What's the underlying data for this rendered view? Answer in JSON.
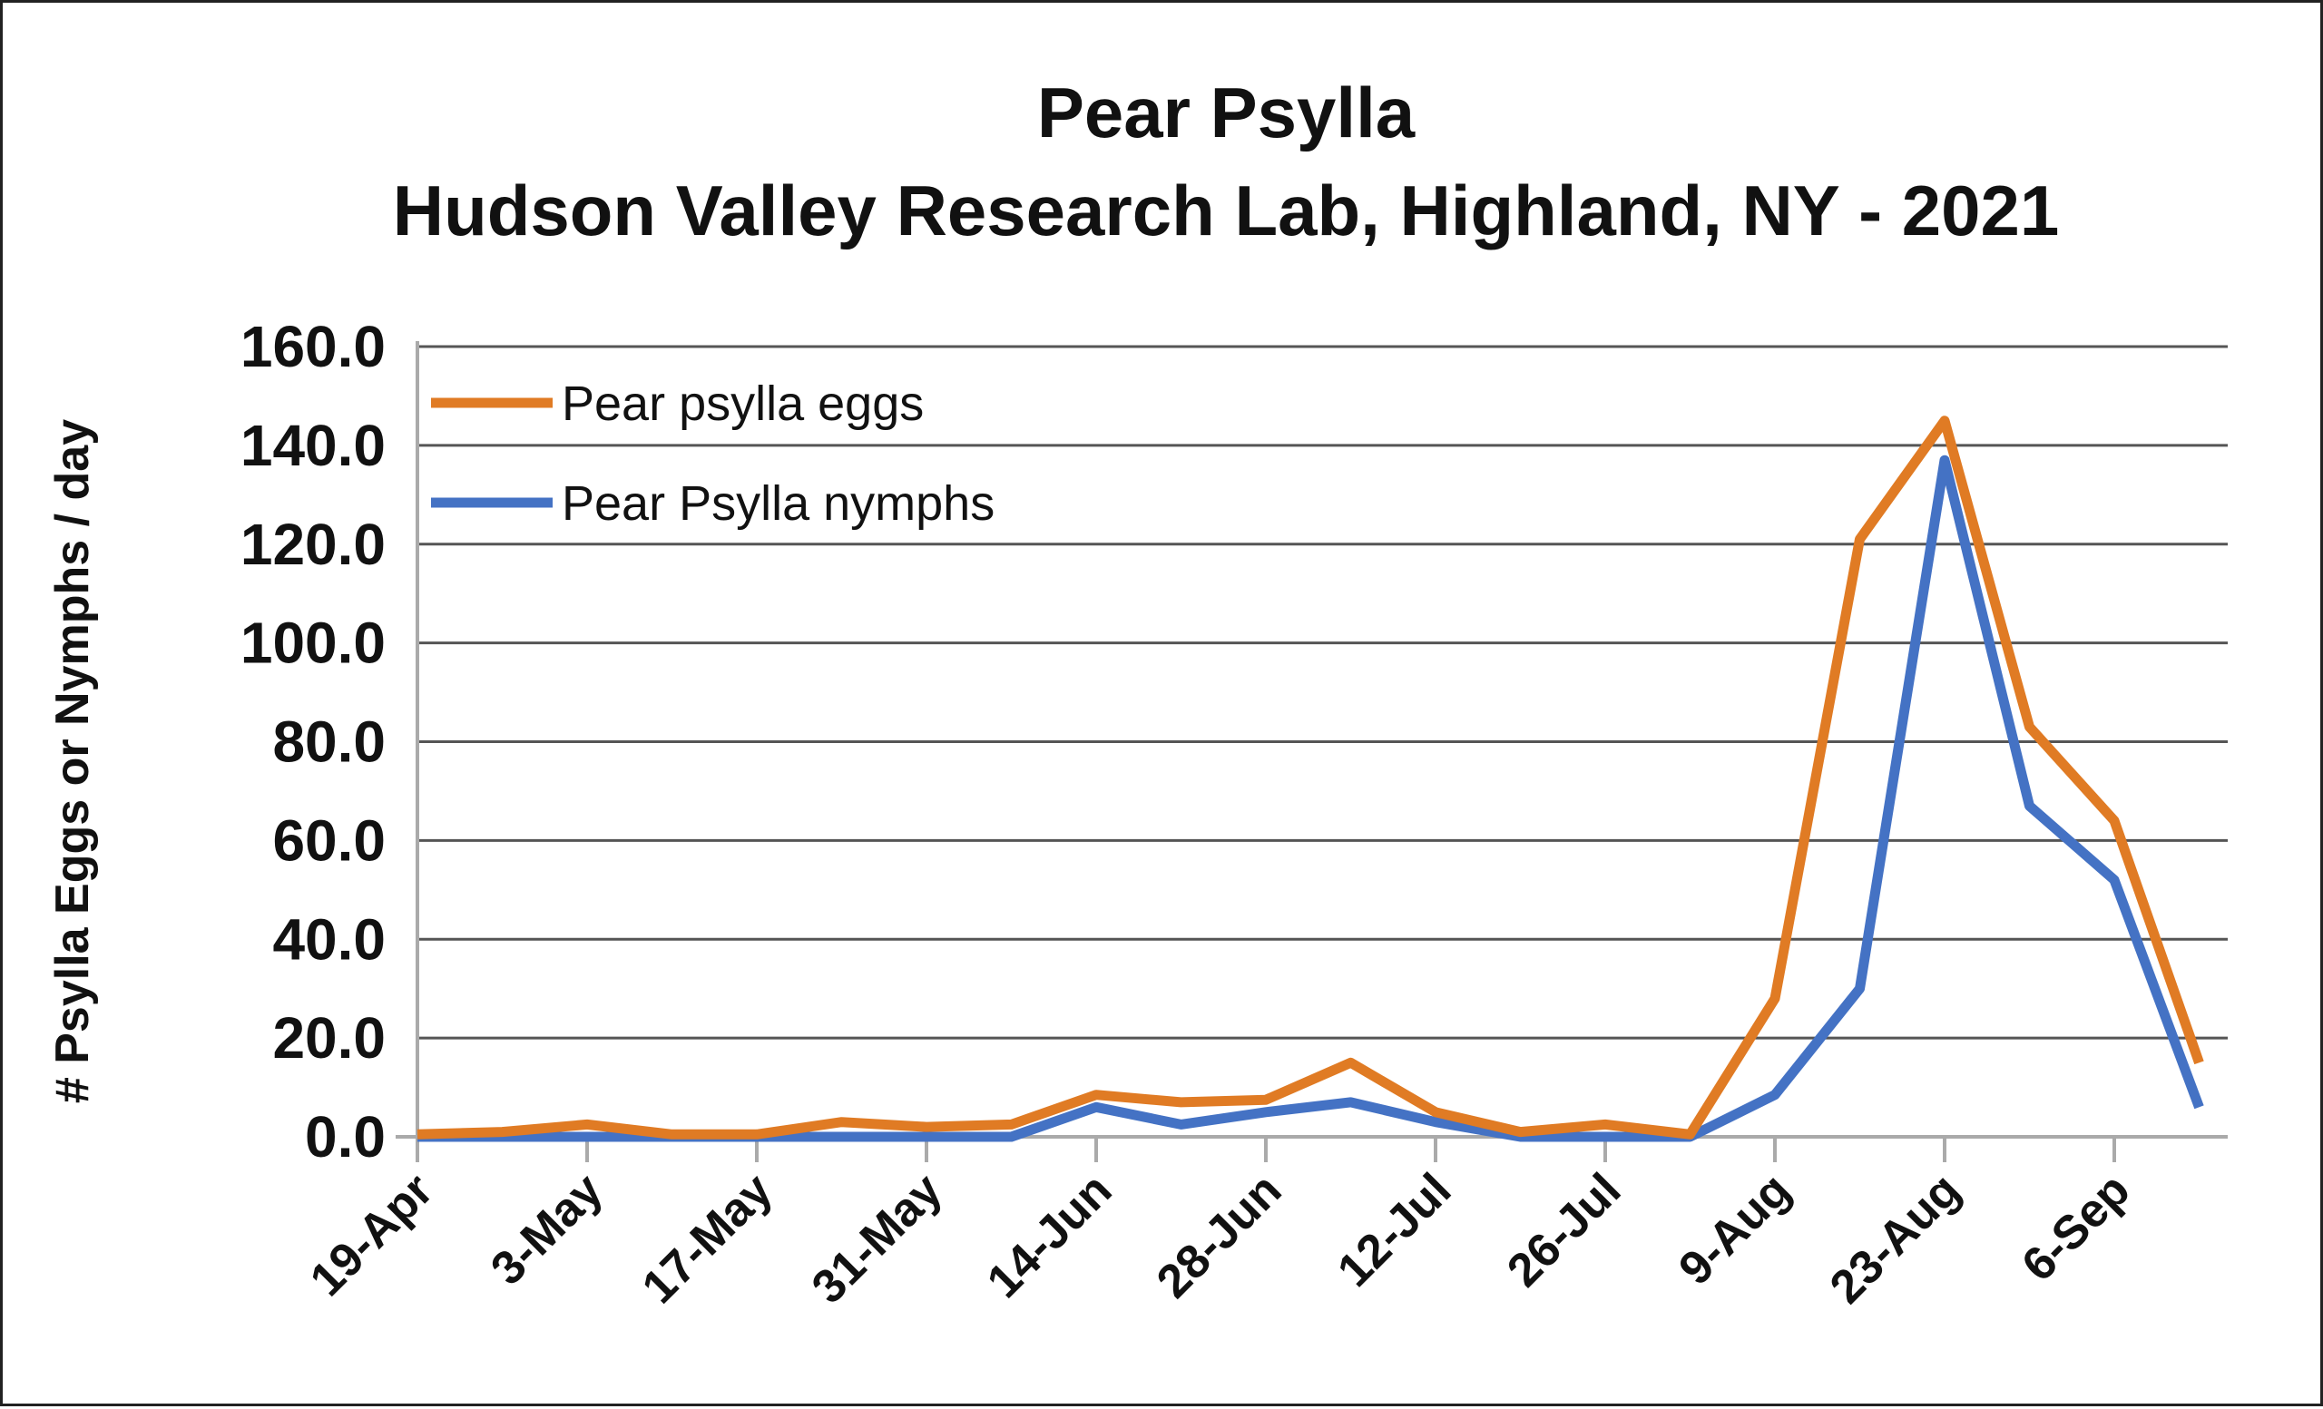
{
  "chart_data": {
    "type": "line",
    "title_lines": [
      "Pear Psylla",
      "Hudson Valley Research Lab, Highland, NY - 2021"
    ],
    "ylabel": "# Psylla Eggs or Nymphs / day",
    "xlabel": "",
    "ylim": [
      0,
      160
    ],
    "yticks": [
      "0.0",
      "20.0",
      "40.0",
      "60.0",
      "80.0",
      "100.0",
      "120.0",
      "140.0",
      "160.0"
    ],
    "ytick_values": [
      0,
      20,
      40,
      60,
      80,
      100,
      120,
      140,
      160
    ],
    "xtick_labels": [
      "19-Apr",
      "3-May",
      "17-May",
      "31-May",
      "14-Jun",
      "28-Jun",
      "12-Jul",
      "26-Jul",
      "9-Aug",
      "23-Aug",
      "6-Sep"
    ],
    "grid": true,
    "legend_position": "top-left",
    "series": [
      {
        "name": "Pear psylla eggs",
        "color": "#E07B24",
        "values": [
          0.5,
          1.0,
          2.5,
          0.5,
          0.5,
          3.0,
          2.0,
          2.5,
          8.5,
          7.0,
          7.5,
          15.0,
          5.0,
          1.0,
          2.5,
          0.5,
          28.0,
          121.0,
          145.0,
          83.0,
          64.0,
          15.0
        ]
      },
      {
        "name": "Pear Psylla nymphs",
        "color": "#4472C4",
        "values": [
          0.0,
          0.0,
          0.0,
          0.0,
          0.0,
          0.0,
          0.0,
          0.0,
          6.0,
          2.5,
          5.0,
          7.0,
          3.0,
          0.0,
          0.0,
          0.0,
          8.5,
          30.0,
          137.0,
          67.0,
          52.0,
          6.0
        ]
      }
    ]
  }
}
